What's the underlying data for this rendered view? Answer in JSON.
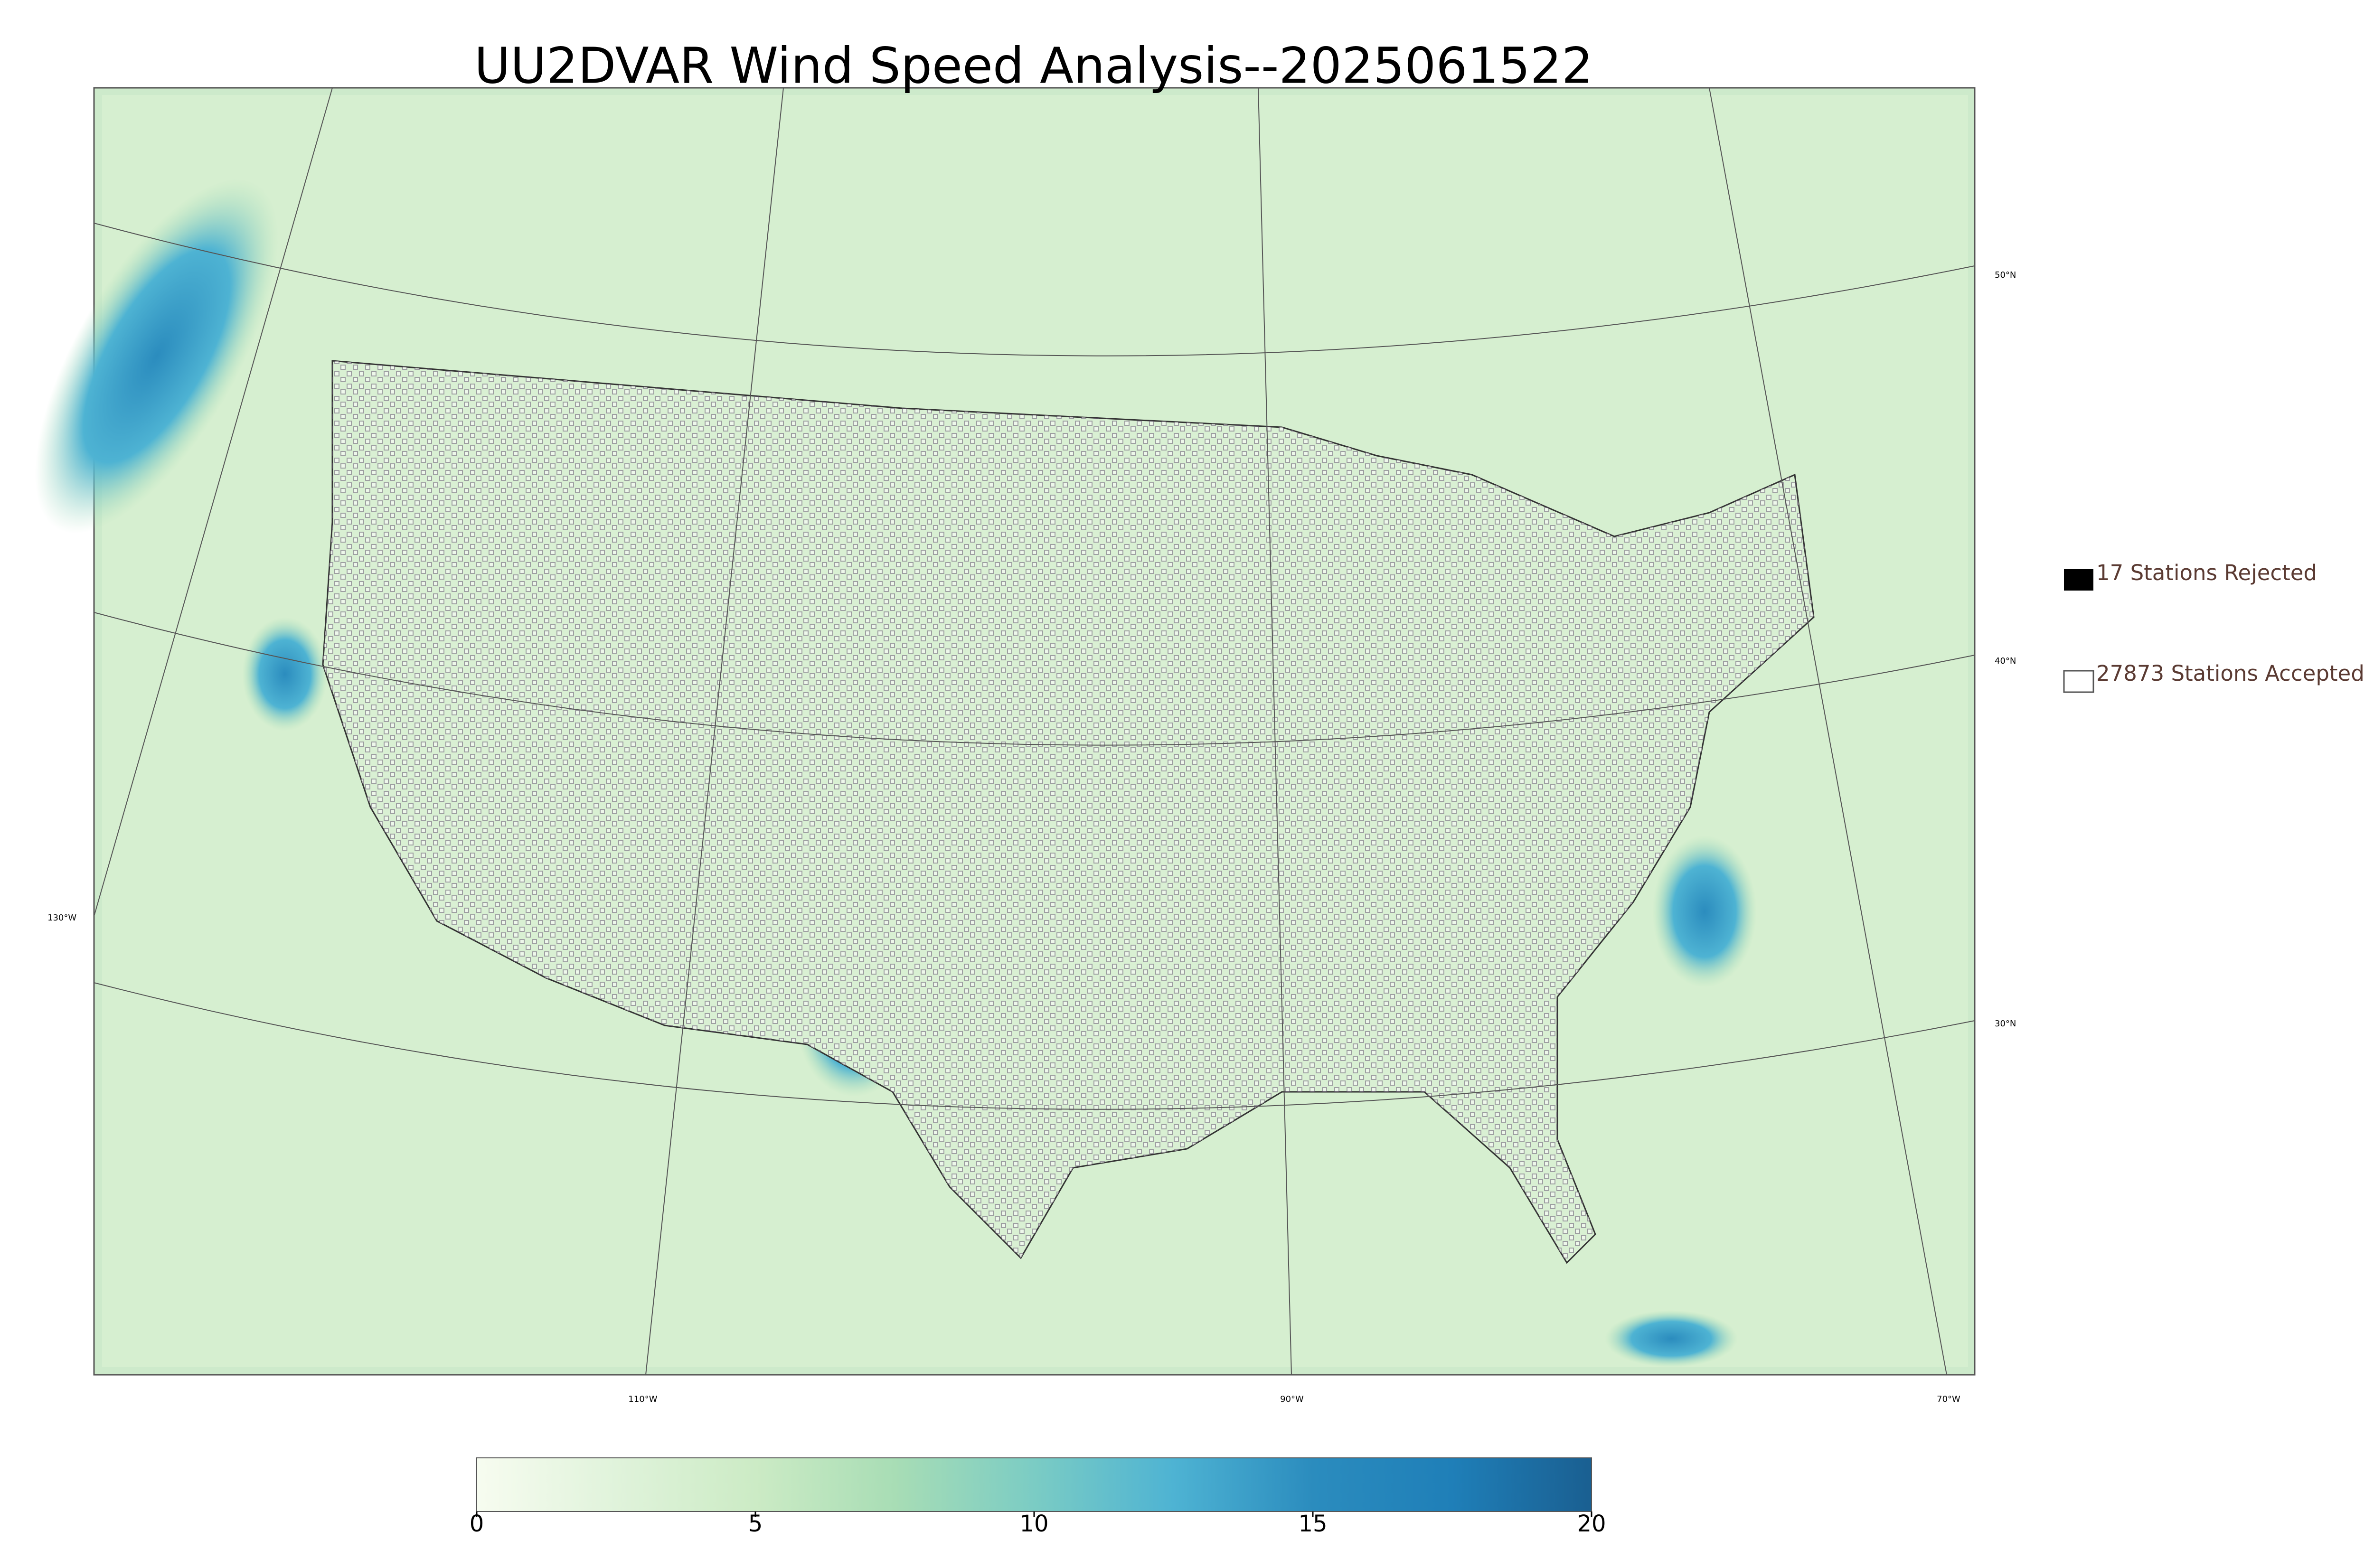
{
  "title": "UU2DVAR Wind Speed Analysis--2025061522",
  "legend": [
    {
      "label": "17 Stations Rejected"
    },
    {
      "label": "27873 Stations Accepted"
    }
  ],
  "colorbar": {
    "lim": [
      0,
      20
    ],
    "ticks": [
      0,
      5,
      10,
      15,
      20
    ],
    "colors": [
      "#f7fcf0",
      "#e0f3db",
      "#ccebc5",
      "#a8ddb5",
      "#7bccc4",
      "#4eb3d3",
      "#2b8cbe",
      "#1f7fb8",
      "#1a5f91"
    ]
  },
  "graticule": {
    "right": [
      "50°N",
      "40°N",
      "30°N"
    ],
    "left": [
      "130°W"
    ],
    "bottom": [
      "110°W",
      "90°W",
      "70°W"
    ]
  }
}
